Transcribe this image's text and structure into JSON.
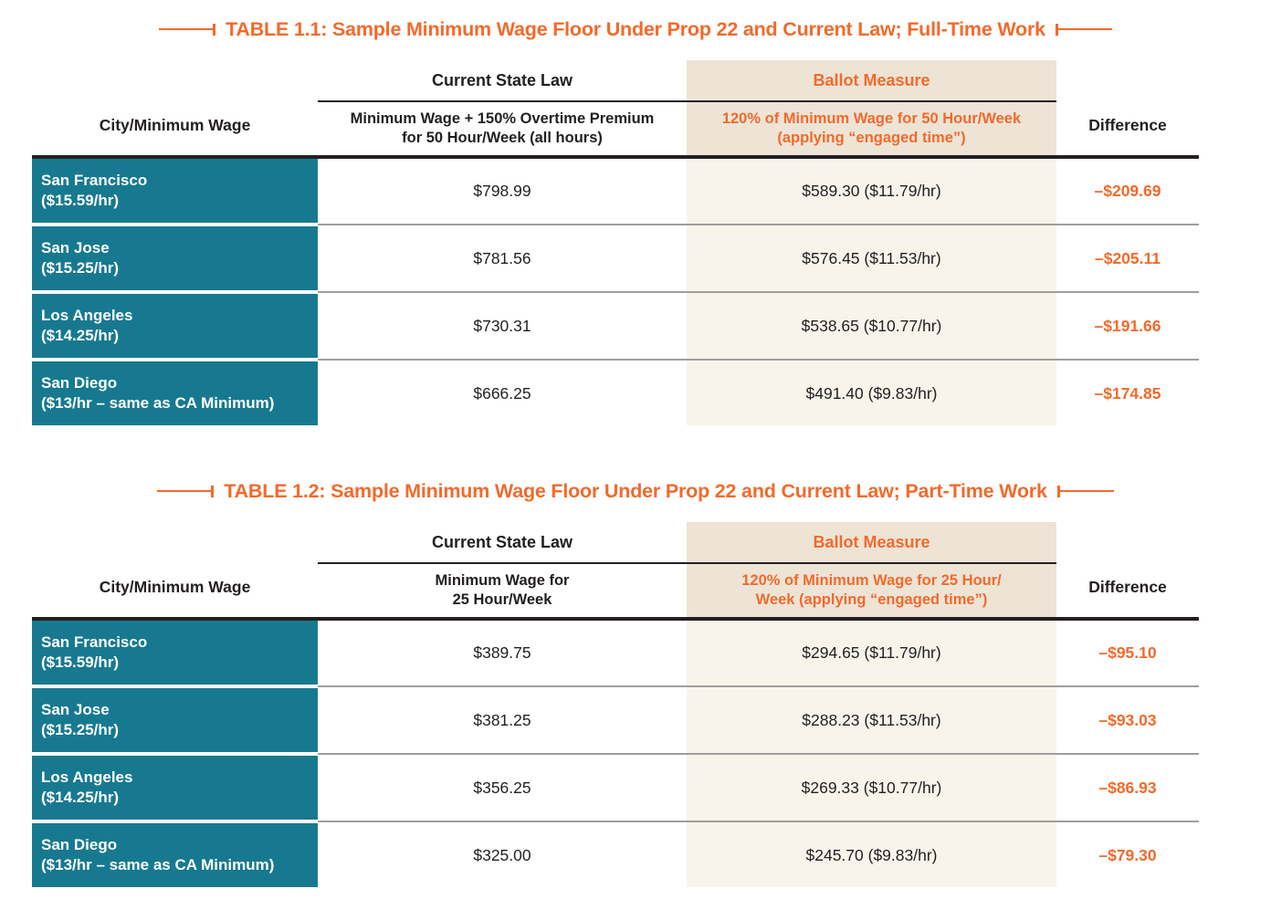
{
  "colors": {
    "accent_orange": "#f26a2b",
    "city_teal": "#17798f",
    "ballot_header_beige": "#ede4d6",
    "ballot_column_beige": "#f8f4ec"
  },
  "tables": [
    {
      "title": "TABLE 1.1: Sample Minimum Wage Floor Under Prop 22 and Current Law; Full-Time Work",
      "col1_header": "City/Minimum Wage",
      "col2_group": "Current State Law",
      "col3_group": "Ballot Measure",
      "col2_sub_line1": "Minimum Wage + 150% Overtime Premium",
      "col2_sub_line2": "for 50 Hour/Week (all hours)",
      "col3_sub_line1": "120% of Minimum Wage for 50 Hour/Week",
      "col3_sub_line2": "(applying “engaged time”)",
      "col4_header": "Difference",
      "rows": [
        {
          "city": "San Francisco",
          "wage_note": "($15.59/hr)",
          "current_law": "$798.99",
          "ballot_measure": "$589.30 ($11.79/hr)",
          "difference": "–$209.69"
        },
        {
          "city": "San Jose",
          "wage_note": "($15.25/hr)",
          "current_law": "$781.56",
          "ballot_measure": "$576.45 ($11.53/hr)",
          "difference": "–$205.11"
        },
        {
          "city": "Los Angeles",
          "wage_note": "($14.25/hr)",
          "current_law": "$730.31",
          "ballot_measure": "$538.65 ($10.77/hr)",
          "difference": "–$191.66"
        },
        {
          "city": "San Diego",
          "wage_note": "($13/hr – same as CA Minimum)",
          "current_law": "$666.25",
          "ballot_measure": "$491.40 ($9.83/hr)",
          "difference": "–$174.85"
        }
      ]
    },
    {
      "title": "TABLE 1.2: Sample Minimum Wage Floor Under Prop 22 and Current Law; Part-Time Work",
      "col1_header": "City/Minimum Wage",
      "col2_group": "Current State Law",
      "col3_group": "Ballot Measure",
      "col2_sub_line1": "Minimum Wage for",
      "col2_sub_line2": "25 Hour/Week",
      "col3_sub_line1": "120% of Minimum Wage for 25 Hour/",
      "col3_sub_line2": "Week (applying “engaged time”)",
      "col4_header": "Difference",
      "rows": [
        {
          "city": "San Francisco",
          "wage_note": "($15.59/hr)",
          "current_law": "$389.75",
          "ballot_measure": "$294.65 ($11.79/hr)",
          "difference": "–$95.10"
        },
        {
          "city": "San Jose",
          "wage_note": "($15.25/hr)",
          "current_law": "$381.25",
          "ballot_measure": "$288.23 ($11.53/hr)",
          "difference": "–$93.03"
        },
        {
          "city": "Los Angeles",
          "wage_note": "($14.25/hr)",
          "current_law": "$356.25",
          "ballot_measure": "$269.33 ($10.77/hr)",
          "difference": "–$86.93"
        },
        {
          "city": "San Diego",
          "wage_note": "($13/hr – same as CA Minimum)",
          "current_law": "$325.00",
          "ballot_measure": "$245.70 ($9.83/hr)",
          "difference": "–$79.30"
        }
      ]
    }
  ]
}
